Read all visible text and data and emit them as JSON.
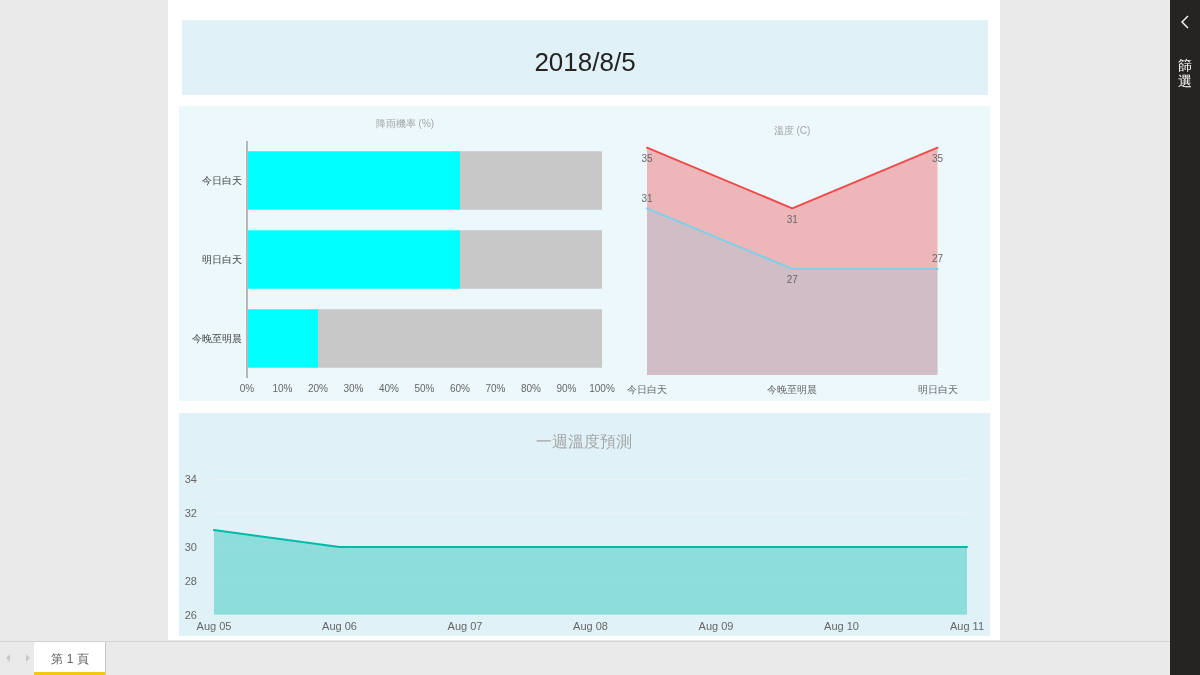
{
  "chart_data": [
    {
      "type": "other",
      "title": "2018/8/5",
      "annotations": [
        "篩選",
        "第 1 頁"
      ]
    },
    {
      "type": "bar",
      "title": "降雨機率 (%)",
      "orientation": "horizontal",
      "stacked": true,
      "categories": [
        "今日白天",
        "明日白天",
        "今晚至明晨"
      ],
      "series": [
        {
          "color": "#00ffff",
          "values": [
            60,
            60,
            20
          ]
        },
        {
          "color": "#c8c8c8",
          "values": [
            40,
            40,
            80
          ]
        }
      ],
      "xlim": [
        0,
        100
      ],
      "xticks": [
        {
          "value": 0,
          "label": "0%"
        },
        {
          "value": 10,
          "label": "10%"
        },
        {
          "value": 20,
          "label": "20%"
        },
        {
          "value": 30,
          "label": "30%"
        },
        {
          "value": 40,
          "label": "40%"
        },
        {
          "value": 50,
          "label": "50%"
        },
        {
          "value": 60,
          "label": "60%"
        },
        {
          "value": 70,
          "label": "70%"
        },
        {
          "value": 80,
          "label": "80%"
        },
        {
          "value": 90,
          "label": "90%"
        },
        {
          "value": 100,
          "label": "100%"
        }
      ]
    },
    {
      "type": "area",
      "title": "溫度 (C)",
      "categories": [
        "今日白天",
        "今晚至明晨",
        "明日白天"
      ],
      "series": [
        {
          "color": "#f04a4a",
          "values": [
            35,
            31,
            35
          ]
        },
        {
          "color": "#7dd0e8",
          "values": [
            31,
            27,
            27
          ]
        }
      ],
      "ylim": [
        20,
        35
      ],
      "data_labels": true,
      "tick_labels": "x"
    },
    {
      "type": "area",
      "title": "一週溫度預測",
      "x": [
        "--08-05",
        "--08-06",
        "--08-07",
        "--08-08",
        "--08-09",
        "--08-10",
        "--08-11"
      ],
      "values": [
        31,
        30,
        30,
        30,
        30,
        30,
        30
      ],
      "color": "#01b8aa",
      "xlim": [
        "--08-05",
        "--08-11"
      ],
      "xticks": [
        {
          "value": "--08-05",
          "label": "Aug 05"
        },
        {
          "value": "--08-06",
          "label": "Aug 06"
        },
        {
          "value": "--08-07",
          "label": "Aug 07"
        },
        {
          "value": "--08-08",
          "label": "Aug 08"
        },
        {
          "value": "--08-09",
          "label": "Aug 09"
        },
        {
          "value": "--08-10",
          "label": "Aug 10"
        },
        {
          "value": "--08-11",
          "label": "Aug 11"
        }
      ],
      "ylim": [
        26,
        34
      ],
      "yticks": [
        26,
        28,
        30,
        32,
        34
      ],
      "grid": "y"
    }
  ]
}
